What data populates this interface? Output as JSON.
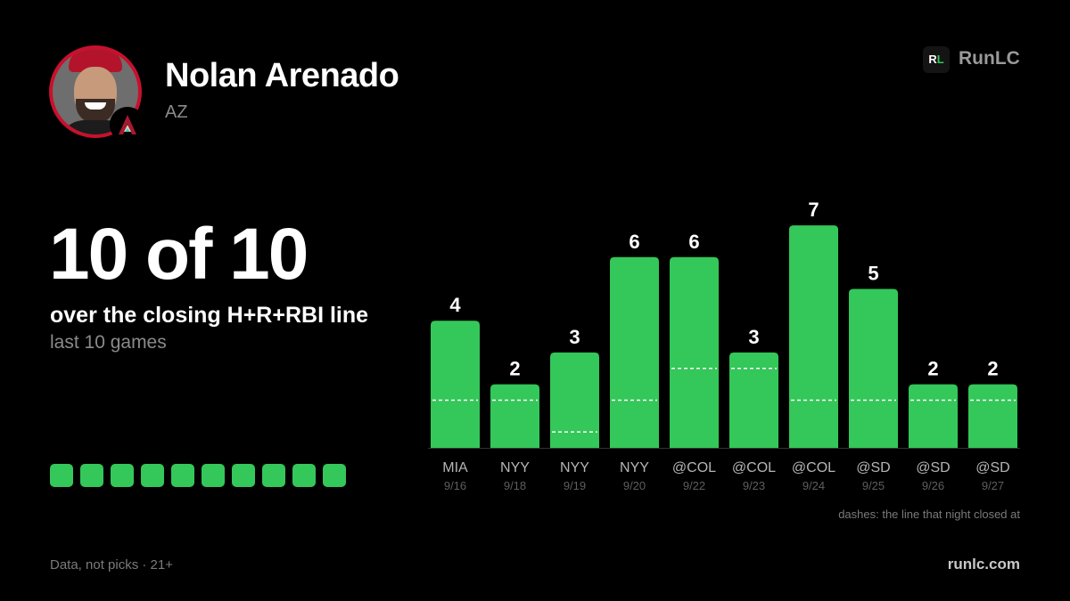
{
  "player": {
    "name": "Nolan Arenado",
    "team": "AZ"
  },
  "brand": {
    "logo_r": "R",
    "logo_l": "L",
    "name": "RunLC",
    "url": "runlc.com"
  },
  "headline": "10 of 10",
  "subhead": "over the closing H+R+RBI line",
  "subnote": "last 10 games",
  "hit_streak": [
    true,
    true,
    true,
    true,
    true,
    true,
    true,
    true,
    true,
    true
  ],
  "footer": {
    "disclaimer": "Data, not picks · 21+"
  },
  "colors": {
    "bar": "#34c759",
    "line_dash": "#ffffff",
    "muted": "#8a8a8a",
    "accent_red": "#c8102e"
  },
  "icons": {
    "avatar": "player-headshot",
    "team_logo": "arizona-diamondbacks-logo"
  },
  "chart_data": {
    "type": "bar",
    "title": "",
    "xlabel": "",
    "ylabel": "",
    "ylim": [
      0,
      7
    ],
    "categories": [
      "MIA",
      "NYY",
      "NYY",
      "NYY",
      "@COL",
      "@COL",
      "@COL",
      "@SD",
      "@SD",
      "@SD"
    ],
    "dates": [
      "9/16",
      "9/18",
      "9/19",
      "9/20",
      "9/22",
      "9/23",
      "9/24",
      "9/25",
      "9/26",
      "9/27"
    ],
    "values": [
      4,
      2,
      3,
      6,
      6,
      3,
      7,
      5,
      2,
      2
    ],
    "closing_lines": [
      1.5,
      1.5,
      0.5,
      1.5,
      2.5,
      2.5,
      1.5,
      1.5,
      1.5,
      1.5
    ],
    "annotation": "dashes: the line that night closed at",
    "grid": false,
    "legend": "none"
  }
}
